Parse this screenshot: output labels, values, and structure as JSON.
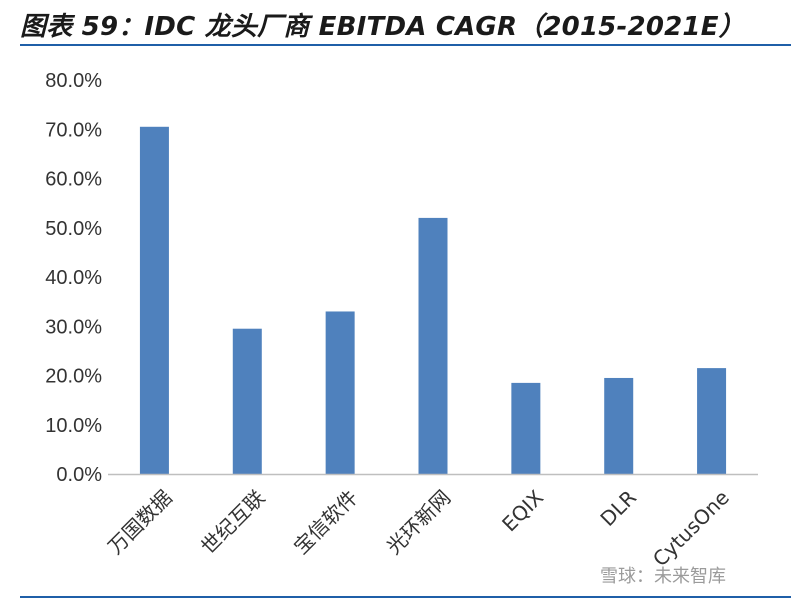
{
  "title": "图表 59：IDC 龙头厂商 EBITDA CAGR（2015-2021E）",
  "watermark": "雪球：未来智库",
  "colors": {
    "bar": "#4f81bd",
    "axis": "#bfbfbf",
    "rule": "#1f5fa8"
  },
  "chart_data": {
    "type": "bar",
    "title": "",
    "xlabel": "",
    "ylabel": "",
    "ylim": [
      0,
      80
    ],
    "y_ticks": [
      "0.0%",
      "10.0%",
      "20.0%",
      "30.0%",
      "40.0%",
      "50.0%",
      "60.0%",
      "70.0%",
      "80.0%"
    ],
    "grid": false,
    "legend": "none",
    "categories": [
      "万国数据",
      "世纪互联",
      "宝信软件",
      "光环新网",
      "EQIX",
      "DLR",
      "CytusOne"
    ],
    "values": [
      70.5,
      29.5,
      33.0,
      52.0,
      18.5,
      19.5,
      21.5
    ]
  }
}
